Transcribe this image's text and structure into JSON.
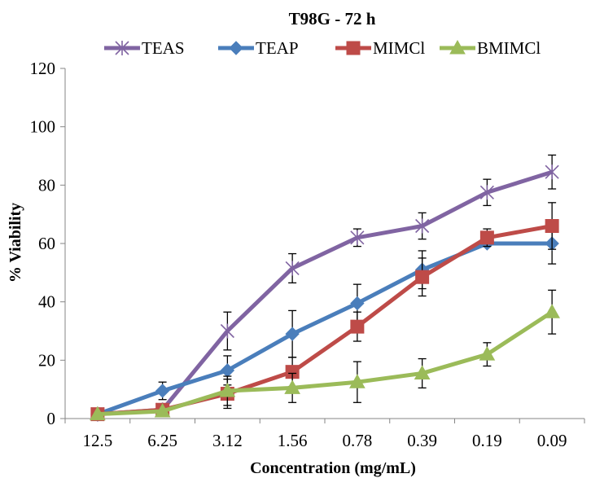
{
  "chart_data": {
    "type": "line",
    "title": "T98G - 72 h",
    "xlabel": "Concentration (mg/mL)",
    "ylabel": "% Viability",
    "categories": [
      "12.5",
      "6.25",
      "3.12",
      "1.56",
      "0.78",
      "0.39",
      "0.19",
      "0.09"
    ],
    "ylim": [
      0,
      120
    ],
    "yticks": [
      "0",
      "20",
      "40",
      "60",
      "80",
      "100",
      "120"
    ],
    "grid": false,
    "legend_position": "top",
    "series": [
      {
        "name": "TEAS",
        "color": "#8064a2",
        "marker": "x-star",
        "values": [
          1.5,
          3,
          30,
          51.5,
          62,
          66,
          77.5,
          84.5
        ],
        "errors": [
          0,
          0,
          6.5,
          5,
          3,
          4.5,
          4.5,
          5.8
        ]
      },
      {
        "name": "TEAP",
        "color": "#4a7ebb",
        "marker": "diamond",
        "values": [
          1.5,
          9.5,
          16.5,
          29,
          39.5,
          51,
          60,
          60
        ],
        "errors": [
          0,
          3,
          5,
          8,
          6.5,
          6.5,
          0,
          7
        ]
      },
      {
        "name": "MIMCl",
        "color": "#be4b48",
        "marker": "square",
        "values": [
          1.5,
          3,
          8.5,
          16,
          31.5,
          48.5,
          62,
          66
        ],
        "errors": [
          0,
          0,
          5,
          5,
          5,
          6.5,
          3,
          8
        ]
      },
      {
        "name": "BMIMCl",
        "color": "#9bbb59",
        "marker": "triangle",
        "values": [
          1.5,
          2.5,
          9.5,
          10.5,
          12.5,
          15.5,
          22,
          36.5
        ],
        "errors": [
          0,
          0,
          5,
          5,
          7,
          5,
          4,
          7.5
        ]
      }
    ]
  }
}
